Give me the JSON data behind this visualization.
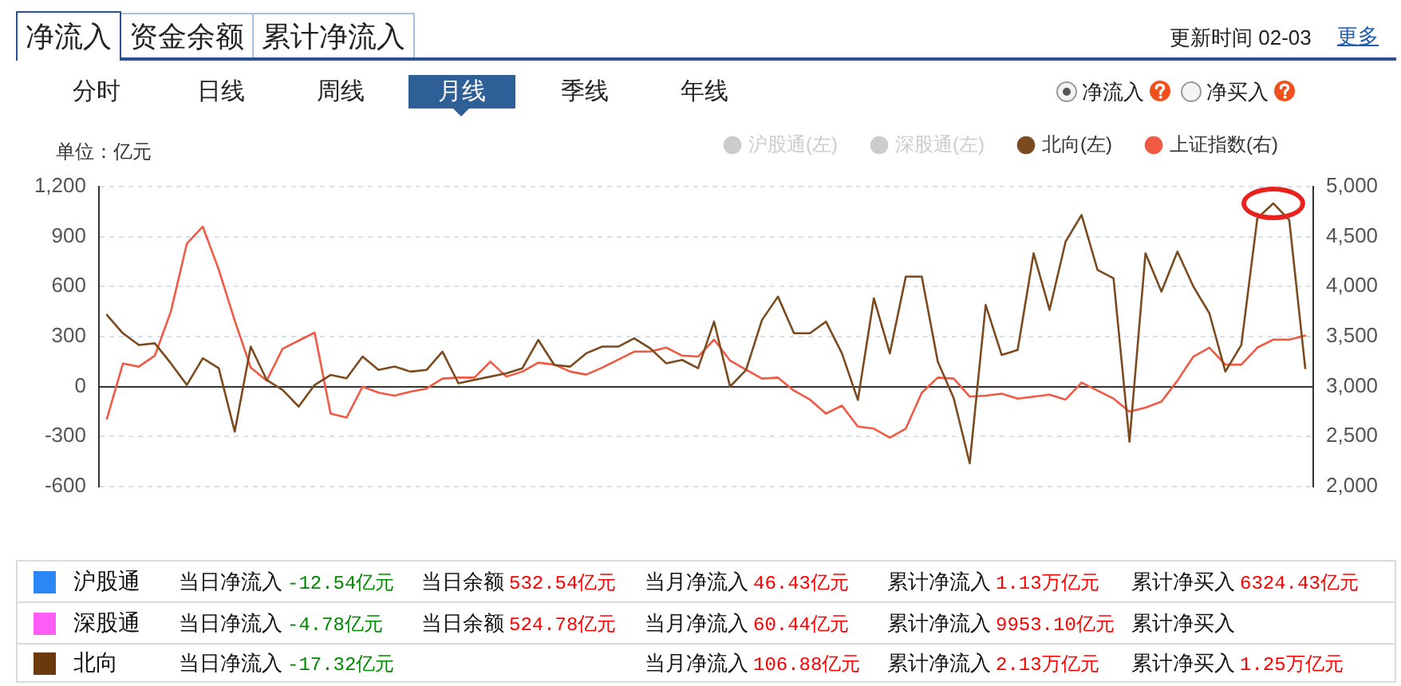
{
  "chart_data": [
    {
      "type": "line",
      "ylabel": "单位：亿元",
      "annotations": [
        "净流入",
        "资金余额",
        "累计净流入",
        "更新时间 02-03",
        "更多",
        "分时",
        "日线",
        "周线",
        "月线",
        "季线",
        "年线",
        "净流入",
        "净买入"
      ],
      "categories": [
        null,
        null,
        null,
        null,
        null,
        null,
        null,
        null,
        null,
        null,
        null,
        null,
        null,
        null,
        null,
        null,
        null,
        null,
        null,
        null,
        null,
        null,
        null,
        null,
        null,
        null,
        null,
        null,
        null,
        null,
        null,
        null,
        null,
        null,
        null,
        null,
        null,
        null,
        null,
        null,
        null,
        null,
        null,
        null,
        null,
        null,
        null,
        null,
        null,
        null,
        null,
        null,
        null,
        null,
        null,
        null,
        null,
        null,
        null,
        null,
        null,
        null,
        null,
        null,
        null,
        null,
        null,
        null,
        null,
        null,
        null,
        null,
        null,
        null,
        null,
        null
      ],
      "series": [
        {
          "name": "沪股通(左)",
          "color": "#cccccc",
          "values": [
            null,
            null,
            null,
            null,
            null,
            null,
            null,
            null,
            null,
            null,
            null,
            null,
            null,
            null,
            null,
            null,
            null,
            null,
            null,
            null,
            null,
            null,
            null,
            null,
            null,
            null,
            null,
            null,
            null,
            null,
            null,
            null,
            null,
            null,
            null,
            null,
            null,
            null,
            null,
            null,
            null,
            null,
            null,
            null,
            null,
            null,
            null,
            null,
            null,
            null,
            null,
            null,
            null,
            null,
            null,
            null,
            null,
            null,
            null,
            null,
            null,
            null,
            null,
            null,
            null,
            null,
            null,
            null,
            null,
            null,
            null,
            null,
            null,
            null,
            null,
            null
          ]
        },
        {
          "name": "深股通(左)",
          "color": "#cccccc",
          "values": [
            null,
            null,
            null,
            null,
            null,
            null,
            null,
            null,
            null,
            null,
            null,
            null,
            null,
            null,
            null,
            null,
            null,
            null,
            null,
            null,
            null,
            null,
            null,
            null,
            null,
            null,
            null,
            null,
            null,
            null,
            null,
            null,
            null,
            null,
            null,
            null,
            null,
            null,
            null,
            null,
            null,
            null,
            null,
            null,
            null,
            null,
            null,
            null,
            null,
            null,
            null,
            null,
            null,
            null,
            null,
            null,
            null,
            null,
            null,
            null,
            null,
            null,
            null,
            null,
            null,
            null,
            null,
            null,
            null,
            null,
            null,
            null,
            null,
            null,
            null,
            null
          ]
        },
        {
          "name": "北向(左)",
          "color": "#7b4a1e",
          "values": [
            430,
            320,
            250,
            260,
            140,
            10,
            170,
            110,
            -270,
            240,
            40,
            -20,
            -120,
            10,
            70,
            50,
            180,
            100,
            120,
            90,
            100,
            210,
            20,
            40,
            60,
            80,
            110,
            280,
            130,
            120,
            200,
            240,
            240,
            290,
            230,
            140,
            160,
            110,
            390,
            0,
            100,
            400,
            540,
            320,
            320,
            390,
            200,
            -80,
            530,
            200,
            660,
            660,
            150,
            -70,
            -460,
            490,
            190,
            220,
            800,
            460,
            870,
            1030,
            700,
            650,
            -330,
            800,
            570,
            810,
            600,
            440,
            90,
            250,
            1010,
            1100,
            1000,
            110
          ]
        },
        {
          "name": "上证指数(右)",
          "color": "#f05a44",
          "axis": "y2",
          "values": [
            2680,
            3230,
            3200,
            3310,
            3750,
            4430,
            4600,
            4170,
            3660,
            3190,
            3060,
            3380,
            3460,
            3540,
            2730,
            2690,
            3000,
            2940,
            2910,
            2950,
            2980,
            3080,
            3090,
            3090,
            3250,
            3100,
            3150,
            3240,
            3220,
            3150,
            3120,
            3190,
            3270,
            3350,
            3350,
            3390,
            3310,
            3300,
            3470,
            3260,
            3170,
            3080,
            3090,
            2960,
            2870,
            2730,
            2810,
            2600,
            2580,
            2490,
            2580,
            2940,
            3090,
            3080,
            2900,
            2910,
            2930,
            2880,
            2900,
            2920,
            2870,
            3040,
            2960,
            2880,
            2750,
            2790,
            2850,
            3060,
            3300,
            3390,
            3220,
            3220,
            3390,
            3470,
            3470,
            3510
          ]
        }
      ],
      "ylim": [
        -600,
        1200
      ],
      "yticks": [
        -600,
        -300,
        0,
        300,
        600,
        900,
        {
          "value": 1200,
          "label": "1,200"
        }
      ],
      "y2lim": [
        2000,
        5000
      ],
      "y2ticks": [
        {
          "value": 2000,
          "label": "2,000"
        },
        {
          "value": 2500,
          "label": "2,500"
        },
        {
          "value": 3000,
          "label": "3,000"
        },
        {
          "value": 3500,
          "label": "3,500"
        },
        {
          "value": 4000,
          "label": "4,000"
        },
        {
          "value": 4500,
          "label": "4,500"
        },
        {
          "value": 5000,
          "label": "5,000"
        }
      ],
      "grid": "y",
      "legend": "top right"
    },
    {
      "type": "other",
      "y_categories": [
        "沪股通",
        "深股通",
        "北向"
      ],
      "colors": [
        "#2b87f6",
        "#fd5cf5",
        "#6b3a0c"
      ],
      "categories": [
        "当日净流入",
        "当日余额",
        "当月净流入",
        "累计净流入",
        "累计净买入"
      ],
      "cell_labels": [
        [
          "-12.54亿元",
          "532.54亿元",
          "46.43亿元",
          "1.13万亿元",
          "6324.43亿元"
        ],
        [
          "-4.78亿元",
          "524.78亿元",
          "60.44亿元",
          "9953.10亿元"
        ],
        [
          "-17.32亿元",
          null,
          "106.88亿元",
          "2.13万亿元",
          "1.25万亿元"
        ]
      ]
    }
  ]
}
